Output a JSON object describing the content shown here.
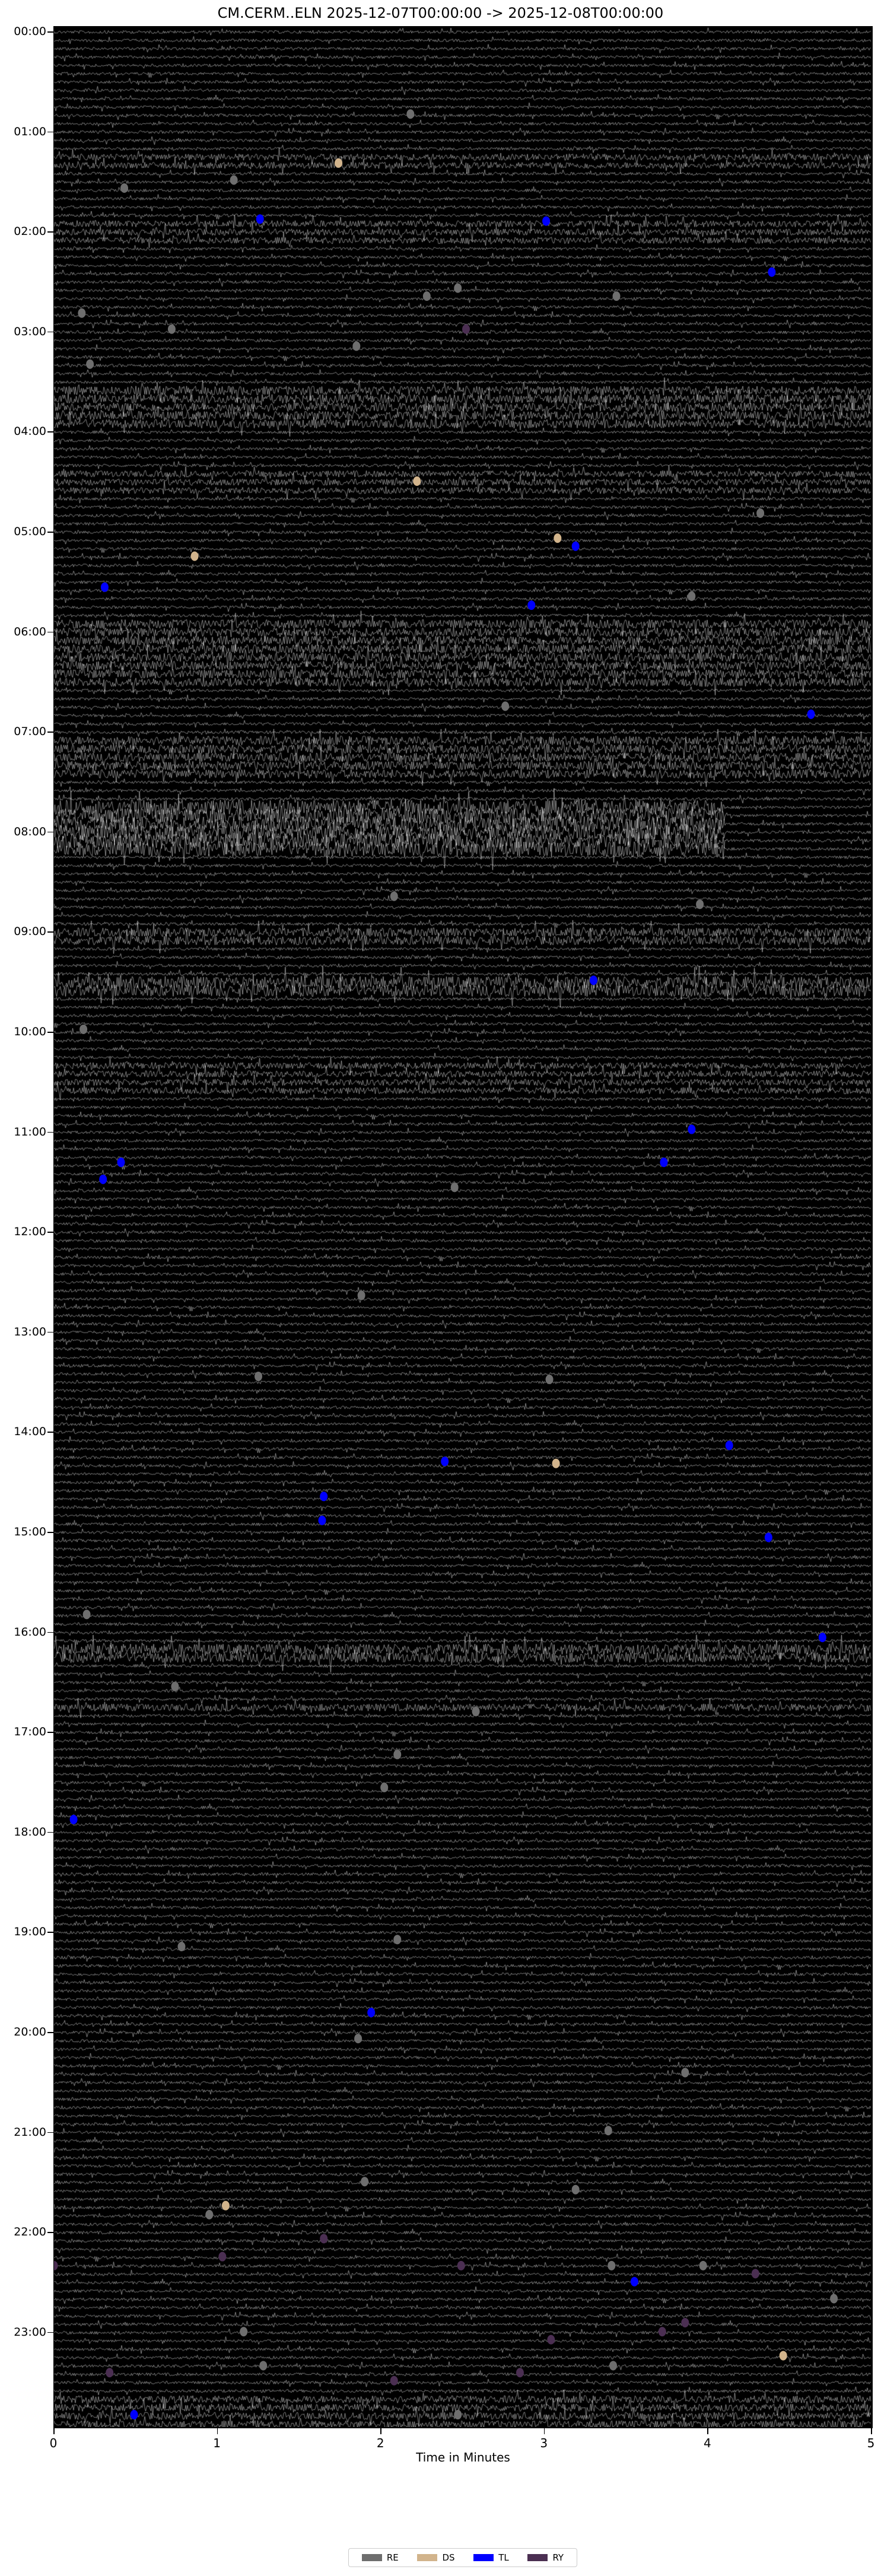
{
  "chart_data": {
    "type": "scatter",
    "title": "CM.CERM..ELN  2025-12-07T00:00:00 -> 2025-12-08T00:00:00",
    "xlabel": "Time in Minutes",
    "ylabel": "",
    "xlim": [
      0,
      5
    ],
    "ylim_hours": [
      0,
      24
    ],
    "x_ticks": [
      "0",
      "1",
      "2",
      "3",
      "4",
      "5"
    ],
    "y_ticks": [
      "00:00",
      "01:00",
      "02:00",
      "03:00",
      "04:00",
      "05:00",
      "06:00",
      "07:00",
      "08:00",
      "09:00",
      "10:00",
      "11:00",
      "12:00",
      "13:00",
      "14:00",
      "15:00",
      "16:00",
      "17:00",
      "18:00",
      "19:00",
      "20:00",
      "21:00",
      "22:00",
      "23:00"
    ],
    "grid": false,
    "legend_placement": "bottom-center",
    "legend": [
      {
        "label": "RE",
        "color": "#6e6e6e"
      },
      {
        "label": "DS",
        "color": "#d2b48c"
      },
      {
        "label": "TL",
        "color": "#0000ff"
      },
      {
        "label": "RY",
        "color": "#4b2f52"
      }
    ],
    "events": [
      {
        "cls": "RE",
        "x": 2.18,
        "hour": 0.82
      },
      {
        "cls": "DS",
        "x": 1.74,
        "hour": 1.31
      },
      {
        "cls": "RE",
        "x": 0.43,
        "hour": 1.56
      },
      {
        "cls": "RE",
        "x": 1.1,
        "hour": 1.48
      },
      {
        "cls": "TL",
        "x": 1.26,
        "hour": 1.87
      },
      {
        "cls": "TL",
        "x": 3.01,
        "hour": 1.89
      },
      {
        "cls": "TL",
        "x": 4.39,
        "hour": 2.4
      },
      {
        "cls": "RE",
        "x": 0.17,
        "hour": 2.81
      },
      {
        "cls": "RE",
        "x": 2.28,
        "hour": 2.64
      },
      {
        "cls": "RE",
        "x": 2.47,
        "hour": 2.56
      },
      {
        "cls": "RE",
        "x": 3.44,
        "hour": 2.64
      },
      {
        "cls": "RE",
        "x": 0.72,
        "hour": 2.97
      },
      {
        "cls": "RY",
        "x": 2.52,
        "hour": 2.97
      },
      {
        "cls": "RE",
        "x": 1.85,
        "hour": 3.14
      },
      {
        "cls": "RE",
        "x": 0.22,
        "hour": 3.32
      },
      {
        "cls": "DS",
        "x": 2.22,
        "hour": 4.49
      },
      {
        "cls": "RE",
        "x": 4.32,
        "hour": 4.81
      },
      {
        "cls": "DS",
        "x": 3.08,
        "hour": 5.06
      },
      {
        "cls": "TL",
        "x": 3.19,
        "hour": 5.14
      },
      {
        "cls": "DS",
        "x": 0.86,
        "hour": 5.24
      },
      {
        "cls": "TL",
        "x": 0.31,
        "hour": 5.55
      },
      {
        "cls": "RE",
        "x": 3.9,
        "hour": 5.64
      },
      {
        "cls": "TL",
        "x": 2.92,
        "hour": 5.73
      },
      {
        "cls": "RE",
        "x": 2.76,
        "hour": 6.74
      },
      {
        "cls": "TL",
        "x": 4.63,
        "hour": 6.82
      },
      {
        "cls": "RE",
        "x": 2.08,
        "hour": 8.64
      },
      {
        "cls": "RE",
        "x": 3.95,
        "hour": 8.72
      },
      {
        "cls": "TL",
        "x": 3.3,
        "hour": 9.48
      },
      {
        "cls": "RE",
        "x": 0.18,
        "hour": 9.97
      },
      {
        "cls": "TL",
        "x": 3.9,
        "hour": 10.97
      },
      {
        "cls": "TL",
        "x": 0.41,
        "hour": 11.3
      },
      {
        "cls": "TL",
        "x": 3.73,
        "hour": 11.3
      },
      {
        "cls": "TL",
        "x": 0.3,
        "hour": 11.47
      },
      {
        "cls": "RE",
        "x": 2.45,
        "hour": 11.55
      },
      {
        "cls": "RE",
        "x": 1.88,
        "hour": 12.63
      },
      {
        "cls": "RE",
        "x": 1.25,
        "hour": 13.44
      },
      {
        "cls": "RE",
        "x": 3.03,
        "hour": 13.47
      },
      {
        "cls": "TL",
        "x": 2.39,
        "hour": 14.29
      },
      {
        "cls": "DS",
        "x": 3.07,
        "hour": 14.31
      },
      {
        "cls": "TL",
        "x": 4.13,
        "hour": 14.13
      },
      {
        "cls": "TL",
        "x": 1.65,
        "hour": 14.64
      },
      {
        "cls": "TL",
        "x": 1.64,
        "hour": 14.88
      },
      {
        "cls": "TL",
        "x": 4.37,
        "hour": 15.05
      },
      {
        "cls": "RE",
        "x": 0.2,
        "hour": 15.82
      },
      {
        "cls": "TL",
        "x": 4.7,
        "hour": 16.05
      },
      {
        "cls": "RE",
        "x": 0.74,
        "hour": 16.54
      },
      {
        "cls": "RE",
        "x": 2.58,
        "hour": 16.79
      },
      {
        "cls": "RE",
        "x": 2.1,
        "hour": 17.22
      },
      {
        "cls": "RE",
        "x": 2.02,
        "hour": 17.55
      },
      {
        "cls": "TL",
        "x": 0.12,
        "hour": 17.87
      },
      {
        "cls": "RE",
        "x": 0.78,
        "hour": 19.14
      },
      {
        "cls": "RE",
        "x": 2.1,
        "hour": 19.07
      },
      {
        "cls": "TL",
        "x": 1.94,
        "hour": 19.8
      },
      {
        "cls": "RE",
        "x": 1.86,
        "hour": 20.06
      },
      {
        "cls": "RE",
        "x": 3.86,
        "hour": 20.4
      },
      {
        "cls": "RE",
        "x": 3.39,
        "hour": 20.98
      },
      {
        "cls": "RE",
        "x": 1.9,
        "hour": 21.49
      },
      {
        "cls": "RE",
        "x": 3.19,
        "hour": 21.57
      },
      {
        "cls": "RE",
        "x": 0.95,
        "hour": 21.82
      },
      {
        "cls": "DS",
        "x": 1.05,
        "hour": 21.73
      },
      {
        "cls": "RY",
        "x": 0.0,
        "hour": 22.33
      },
      {
        "cls": "RY",
        "x": 1.03,
        "hour": 22.24
      },
      {
        "cls": "RY",
        "x": 1.65,
        "hour": 22.06
      },
      {
        "cls": "RY",
        "x": 2.49,
        "hour": 22.33
      },
      {
        "cls": "RE",
        "x": 3.41,
        "hour": 22.33
      },
      {
        "cls": "RE",
        "x": 3.97,
        "hour": 22.33
      },
      {
        "cls": "RY",
        "x": 4.29,
        "hour": 22.41
      },
      {
        "cls": "TL",
        "x": 3.55,
        "hour": 22.49
      },
      {
        "cls": "RE",
        "x": 4.77,
        "hour": 22.66
      },
      {
        "cls": "RY",
        "x": 3.86,
        "hour": 22.9
      },
      {
        "cls": "RY",
        "x": 3.72,
        "hour": 22.99
      },
      {
        "cls": "RY",
        "x": 3.04,
        "hour": 23.07
      },
      {
        "cls": "RE",
        "x": 1.16,
        "hour": 22.99
      },
      {
        "cls": "DS",
        "x": 4.46,
        "hour": 23.23
      },
      {
        "cls": "RE",
        "x": 1.28,
        "hour": 23.33
      },
      {
        "cls": "RE",
        "x": 3.42,
        "hour": 23.33
      },
      {
        "cls": "RY",
        "x": 2.85,
        "hour": 23.4
      },
      {
        "cls": "RY",
        "x": 0.34,
        "hour": 23.4
      },
      {
        "cls": "RY",
        "x": 2.08,
        "hour": 23.48
      },
      {
        "cls": "RE",
        "x": 2.47,
        "hour": 23.82
      },
      {
        "cls": "TL",
        "x": 0.49,
        "hour": 23.82
      }
    ]
  }
}
